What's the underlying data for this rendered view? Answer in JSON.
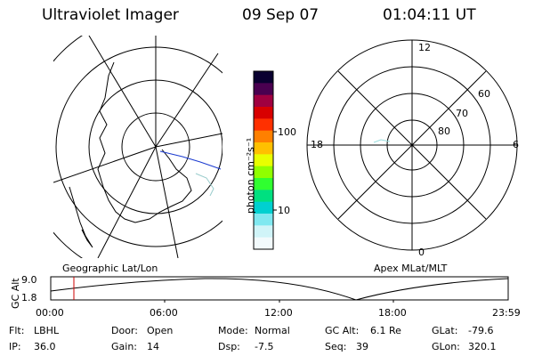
{
  "header": {
    "title": "Ultraviolet Imager",
    "date": "09 Sep 07",
    "time": "01:04:11 UT"
  },
  "geo_panel": {
    "label": "Geographic Lat/Lon"
  },
  "colorbar": {
    "unit_label": "photon cm⁻²s⁻¹",
    "ticks": [
      "100",
      "10"
    ],
    "scale": "log",
    "colors": [
      "#0a0030",
      "#4a0050",
      "#a00040",
      "#d80000",
      "#ff3000",
      "#ff8000",
      "#ffc000",
      "#e8ff00",
      "#90ff00",
      "#30ff30",
      "#00e080",
      "#00d0d0",
      "#80e8f0",
      "#d0f4f8",
      "#f2fafc"
    ]
  },
  "polar_panel": {
    "label": "Apex MLat/MLT",
    "mlt_labels": {
      "top": "12",
      "left": "18",
      "right": "6",
      "bottom": "0"
    },
    "lat_labels": [
      "60",
      "70",
      "80"
    ]
  },
  "altitude_plot": {
    "ylabel": "GC Alt",
    "yticks": [
      "9.0",
      "1.8"
    ],
    "xticks": [
      "00:00",
      "06:00",
      "12:00",
      "18:00",
      "23:59"
    ],
    "marker_time": "01:04",
    "marker_color": "#cc0000"
  },
  "status": {
    "row1": [
      {
        "key": "Flt:",
        "value": "LBHL"
      },
      {
        "key": "Door:",
        "value": "Open"
      },
      {
        "key": "Mode:",
        "value": "Normal"
      },
      {
        "key": "GC Alt:",
        "value": "6.1 Re"
      },
      {
        "key": "GLat:",
        "value": "-79.6"
      }
    ],
    "row2": [
      {
        "key": "IP:",
        "value": "36.0"
      },
      {
        "key": "Gain:",
        "value": "14"
      },
      {
        "key": "Dsp:",
        "value": "-7.5"
      },
      {
        "key": "Seq:",
        "value": "39"
      },
      {
        "key": "GLon:",
        "value": "320.1"
      }
    ]
  }
}
